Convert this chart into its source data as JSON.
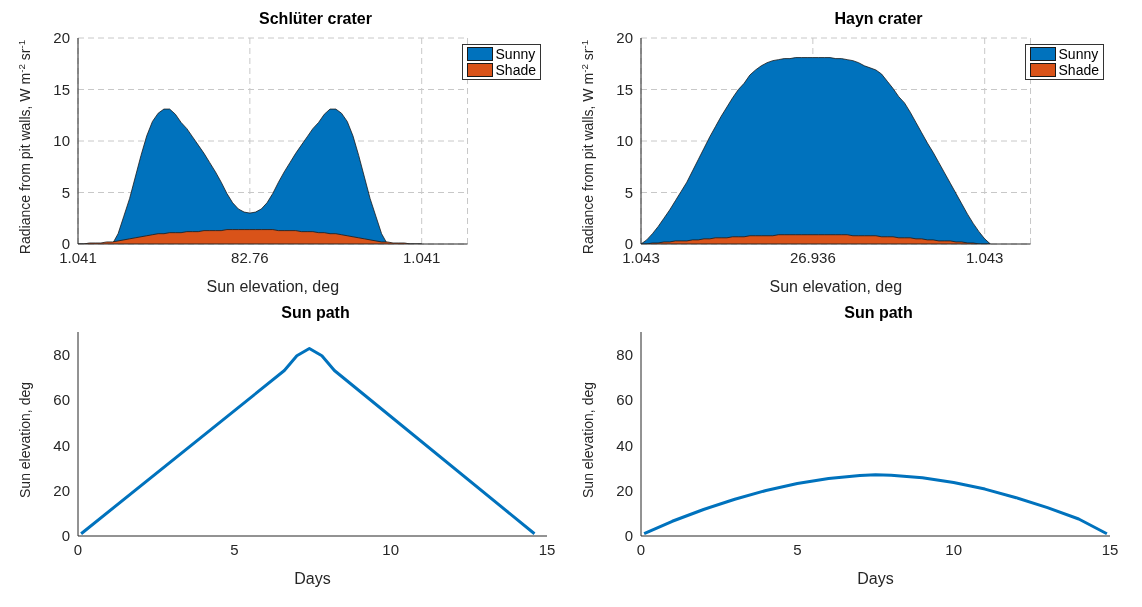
{
  "chart_data": [
    {
      "type": "area",
      "title": "Schlüter crater",
      "xlabel": "Sun elevation, deg",
      "ylabel": "Radiance from pit walls, W m$^{-2}$ sr$^{-1}$",
      "categories": [
        "1.041",
        null,
        null,
        null,
        null,
        null,
        null,
        null,
        null,
        null,
        null,
        null,
        null,
        null,
        null,
        null,
        null,
        null,
        null,
        null,
        null,
        null,
        null,
        null,
        null,
        null,
        null,
        null,
        null,
        null,
        "82.76",
        null,
        null,
        null,
        null,
        null,
        null,
        null,
        null,
        null,
        null,
        null,
        null,
        null,
        null,
        null,
        null,
        null,
        null,
        null,
        null,
        null,
        null,
        null,
        null,
        null,
        null,
        null,
        null,
        null,
        "1.041",
        null,
        null,
        null,
        null,
        null,
        null,
        null,
        null
      ],
      "ylim": [
        0,
        20
      ],
      "yticks": [
        0,
        5,
        10,
        15,
        20
      ],
      "grid": true,
      "legend": "top right",
      "series": [
        {
          "name": "Sunny",
          "color": "#0072bd",
          "values": [
            0,
            0,
            0,
            0,
            0,
            0,
            0,
            1.0,
            2.7,
            4.4,
            6.5,
            8.6,
            10.5,
            11.9,
            12.7,
            13.1,
            13.1,
            12.6,
            11.8,
            11.2,
            10.4,
            9.6,
            8.8,
            7.9,
            7.0,
            6.0,
            4.9,
            4.0,
            3.4,
            3.1,
            3.0,
            3.1,
            3.4,
            4.0,
            4.9,
            6.0,
            7.0,
            7.9,
            8.8,
            9.6,
            10.4,
            11.2,
            11.8,
            12.6,
            13.1,
            13.1,
            12.7,
            11.9,
            10.5,
            8.6,
            6.5,
            4.4,
            2.7,
            1.0,
            0,
            0,
            0,
            0,
            0,
            0,
            0,
            null,
            null,
            null,
            null,
            null,
            null,
            null,
            null
          ]
        },
        {
          "name": "Shade",
          "color": "#d95319",
          "values": [
            0,
            0,
            0.1,
            0.1,
            0.1,
            0.2,
            0.2,
            0.3,
            0.4,
            0.5,
            0.6,
            0.7,
            0.8,
            0.9,
            1.0,
            1.0,
            1.1,
            1.1,
            1.1,
            1.2,
            1.2,
            1.2,
            1.3,
            1.3,
            1.3,
            1.3,
            1.4,
            1.4,
            1.4,
            1.4,
            1.4,
            1.4,
            1.4,
            1.4,
            1.4,
            1.3,
            1.3,
            1.3,
            1.3,
            1.2,
            1.2,
            1.2,
            1.1,
            1.1,
            1.0,
            1.0,
            0.9,
            0.8,
            0.7,
            0.6,
            0.5,
            0.4,
            0.3,
            0.2,
            0.2,
            0.1,
            0.1,
            0.1,
            0,
            0,
            0,
            null,
            null,
            null,
            null,
            null,
            null,
            null,
            null
          ]
        }
      ]
    },
    {
      "type": "area",
      "title": "Hayn crater",
      "xlabel": "Sun elevation, deg",
      "ylabel": "Radiance from pit walls, W m$^{-2}$ sr$^{-1}$",
      "categories": [
        "1.043",
        null,
        null,
        null,
        null,
        null,
        null,
        null,
        null,
        null,
        null,
        null,
        null,
        null,
        null,
        null,
        null,
        null,
        null,
        null,
        null,
        null,
        null,
        null,
        null,
        null,
        null,
        null,
        null,
        null,
        "26.936",
        null,
        null,
        null,
        null,
        null,
        null,
        null,
        null,
        null,
        null,
        null,
        null,
        null,
        null,
        null,
        null,
        null,
        null,
        null,
        null,
        null,
        null,
        null,
        null,
        null,
        null,
        null,
        null,
        null,
        "1.043",
        null,
        null,
        null,
        null,
        null,
        null,
        null,
        null
      ],
      "ylim": [
        0,
        20
      ],
      "yticks": [
        0,
        5,
        10,
        15,
        20
      ],
      "grid": true,
      "legend": "top right",
      "series": [
        {
          "name": "Sunny",
          "color": "#0072bd",
          "values": [
            0,
            0.4,
            1.0,
            1.7,
            2.5,
            3.3,
            4.2,
            5.1,
            6.0,
            7.1,
            8.2,
            9.3,
            10.4,
            11.4,
            12.4,
            13.3,
            14.2,
            15.0,
            15.6,
            16.4,
            16.9,
            17.3,
            17.6,
            17.8,
            17.9,
            18.0,
            18.0,
            18.1,
            18.1,
            18.1,
            18.1,
            18.1,
            18.1,
            18.1,
            18.0,
            18.0,
            17.9,
            17.8,
            17.6,
            17.3,
            17.1,
            16.9,
            16.5,
            15.8,
            15.1,
            14.3,
            13.7,
            12.8,
            11.8,
            10.8,
            9.8,
            8.9,
            7.9,
            6.9,
            5.9,
            4.9,
            3.9,
            2.9,
            2.0,
            1.2,
            0.5,
            0,
            null,
            null,
            null,
            null,
            null,
            null,
            null
          ]
        },
        {
          "name": "Shade",
          "color": "#d95319",
          "values": [
            0,
            0,
            0.1,
            0.1,
            0.2,
            0.2,
            0.3,
            0.3,
            0.3,
            0.4,
            0.4,
            0.5,
            0.5,
            0.6,
            0.6,
            0.6,
            0.7,
            0.7,
            0.7,
            0.8,
            0.8,
            0.8,
            0.8,
            0.8,
            0.9,
            0.9,
            0.9,
            0.9,
            0.9,
            0.9,
            0.9,
            0.9,
            0.9,
            0.9,
            0.9,
            0.9,
            0.9,
            0.8,
            0.8,
            0.8,
            0.8,
            0.8,
            0.7,
            0.7,
            0.7,
            0.6,
            0.6,
            0.6,
            0.5,
            0.5,
            0.4,
            0.4,
            0.3,
            0.3,
            0.3,
            0.2,
            0.2,
            0.1,
            0.1,
            0,
            0,
            0,
            null,
            null,
            null,
            null,
            null,
            null,
            null
          ]
        }
      ]
    },
    {
      "type": "line",
      "title": "Sun path",
      "xlabel": "Days",
      "ylabel": "Sun elevation, deg",
      "xlim": [
        0,
        15
      ],
      "xticks": [
        0,
        5,
        10,
        15
      ],
      "ylim": [
        0,
        90
      ],
      "yticks": [
        0,
        20,
        40,
        60,
        80
      ],
      "series": [
        {
          "color": "#0072bd",
          "x": [
            0.1,
            6.6,
            7.0,
            7.4,
            7.8,
            8.2,
            14.6
          ],
          "values": [
            1,
            73,
            79.5,
            82.7,
            79.5,
            73,
            1
          ]
        }
      ]
    },
    {
      "type": "line",
      "title": "Sun path",
      "xlabel": "Days",
      "ylabel": "Sun elevation, deg",
      "xlim": [
        0,
        15
      ],
      "xticks": [
        0,
        5,
        10,
        15
      ],
      "ylim": [
        0,
        90
      ],
      "yticks": [
        0,
        20,
        40,
        60,
        80
      ],
      "series": [
        {
          "color": "#0072bd",
          "x": [
            0.1,
            1,
            2,
            3,
            4,
            5,
            6,
            7,
            7.5,
            8,
            9,
            10,
            11,
            12,
            13,
            14,
            14.9
          ],
          "values": [
            1,
            6.5,
            11.7,
            16.2,
            20.1,
            23.2,
            25.4,
            26.7,
            27,
            26.8,
            25.7,
            23.6,
            20.7,
            16.9,
            12.5,
            7.5,
            1
          ]
        }
      ]
    }
  ]
}
